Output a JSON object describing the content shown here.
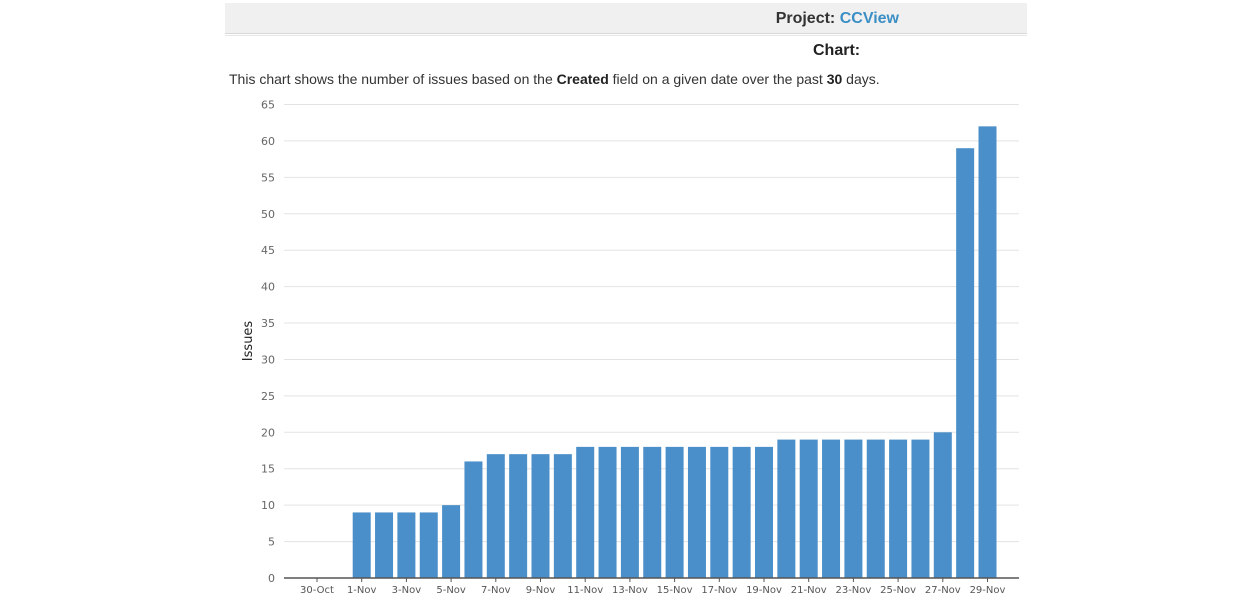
{
  "header": {
    "project_label": "Project:",
    "project_name": "CCView"
  },
  "chart_heading": "Chart:",
  "description": {
    "pre": "This chart shows the number of issues based on the ",
    "field": "Created",
    "mid": " field on a given date over the past ",
    "days": "30",
    "post": " days."
  },
  "chart_data": {
    "type": "bar",
    "title": "",
    "xlabel": "",
    "ylabel": "Issues",
    "ylim": [
      0,
      65
    ],
    "yticks": [
      0,
      5,
      10,
      15,
      20,
      25,
      30,
      35,
      40,
      45,
      50,
      55,
      60,
      65
    ],
    "grid": true,
    "bar_color": "#4a8fc9",
    "categories": [
      "30-Oct",
      "31-Oct",
      "1-Nov",
      "2-Nov",
      "3-Nov",
      "4-Nov",
      "5-Nov",
      "6-Nov",
      "7-Nov",
      "8-Nov",
      "9-Nov",
      "10-Nov",
      "11-Nov",
      "12-Nov",
      "13-Nov",
      "14-Nov",
      "15-Nov",
      "16-Nov",
      "17-Nov",
      "18-Nov",
      "19-Nov",
      "20-Nov",
      "21-Nov",
      "22-Nov",
      "23-Nov",
      "24-Nov",
      "25-Nov",
      "26-Nov",
      "27-Nov",
      "28-Nov",
      "29-Nov"
    ],
    "values": [
      0,
      0,
      9,
      9,
      9,
      9,
      10,
      16,
      17,
      17,
      17,
      17,
      18,
      18,
      18,
      18,
      18,
      18,
      18,
      18,
      18,
      19,
      19,
      19,
      19,
      19,
      19,
      19,
      20,
      59,
      62
    ],
    "tick_labels": [
      "30-Oct",
      "1-Nov",
      "3-Nov",
      "5-Nov",
      "7-Nov",
      "9-Nov",
      "11-Nov",
      "13-Nov",
      "15-Nov",
      "17-Nov",
      "19-Nov",
      "21-Nov",
      "23-Nov",
      "25-Nov",
      "27-Nov",
      "29-Nov"
    ]
  }
}
